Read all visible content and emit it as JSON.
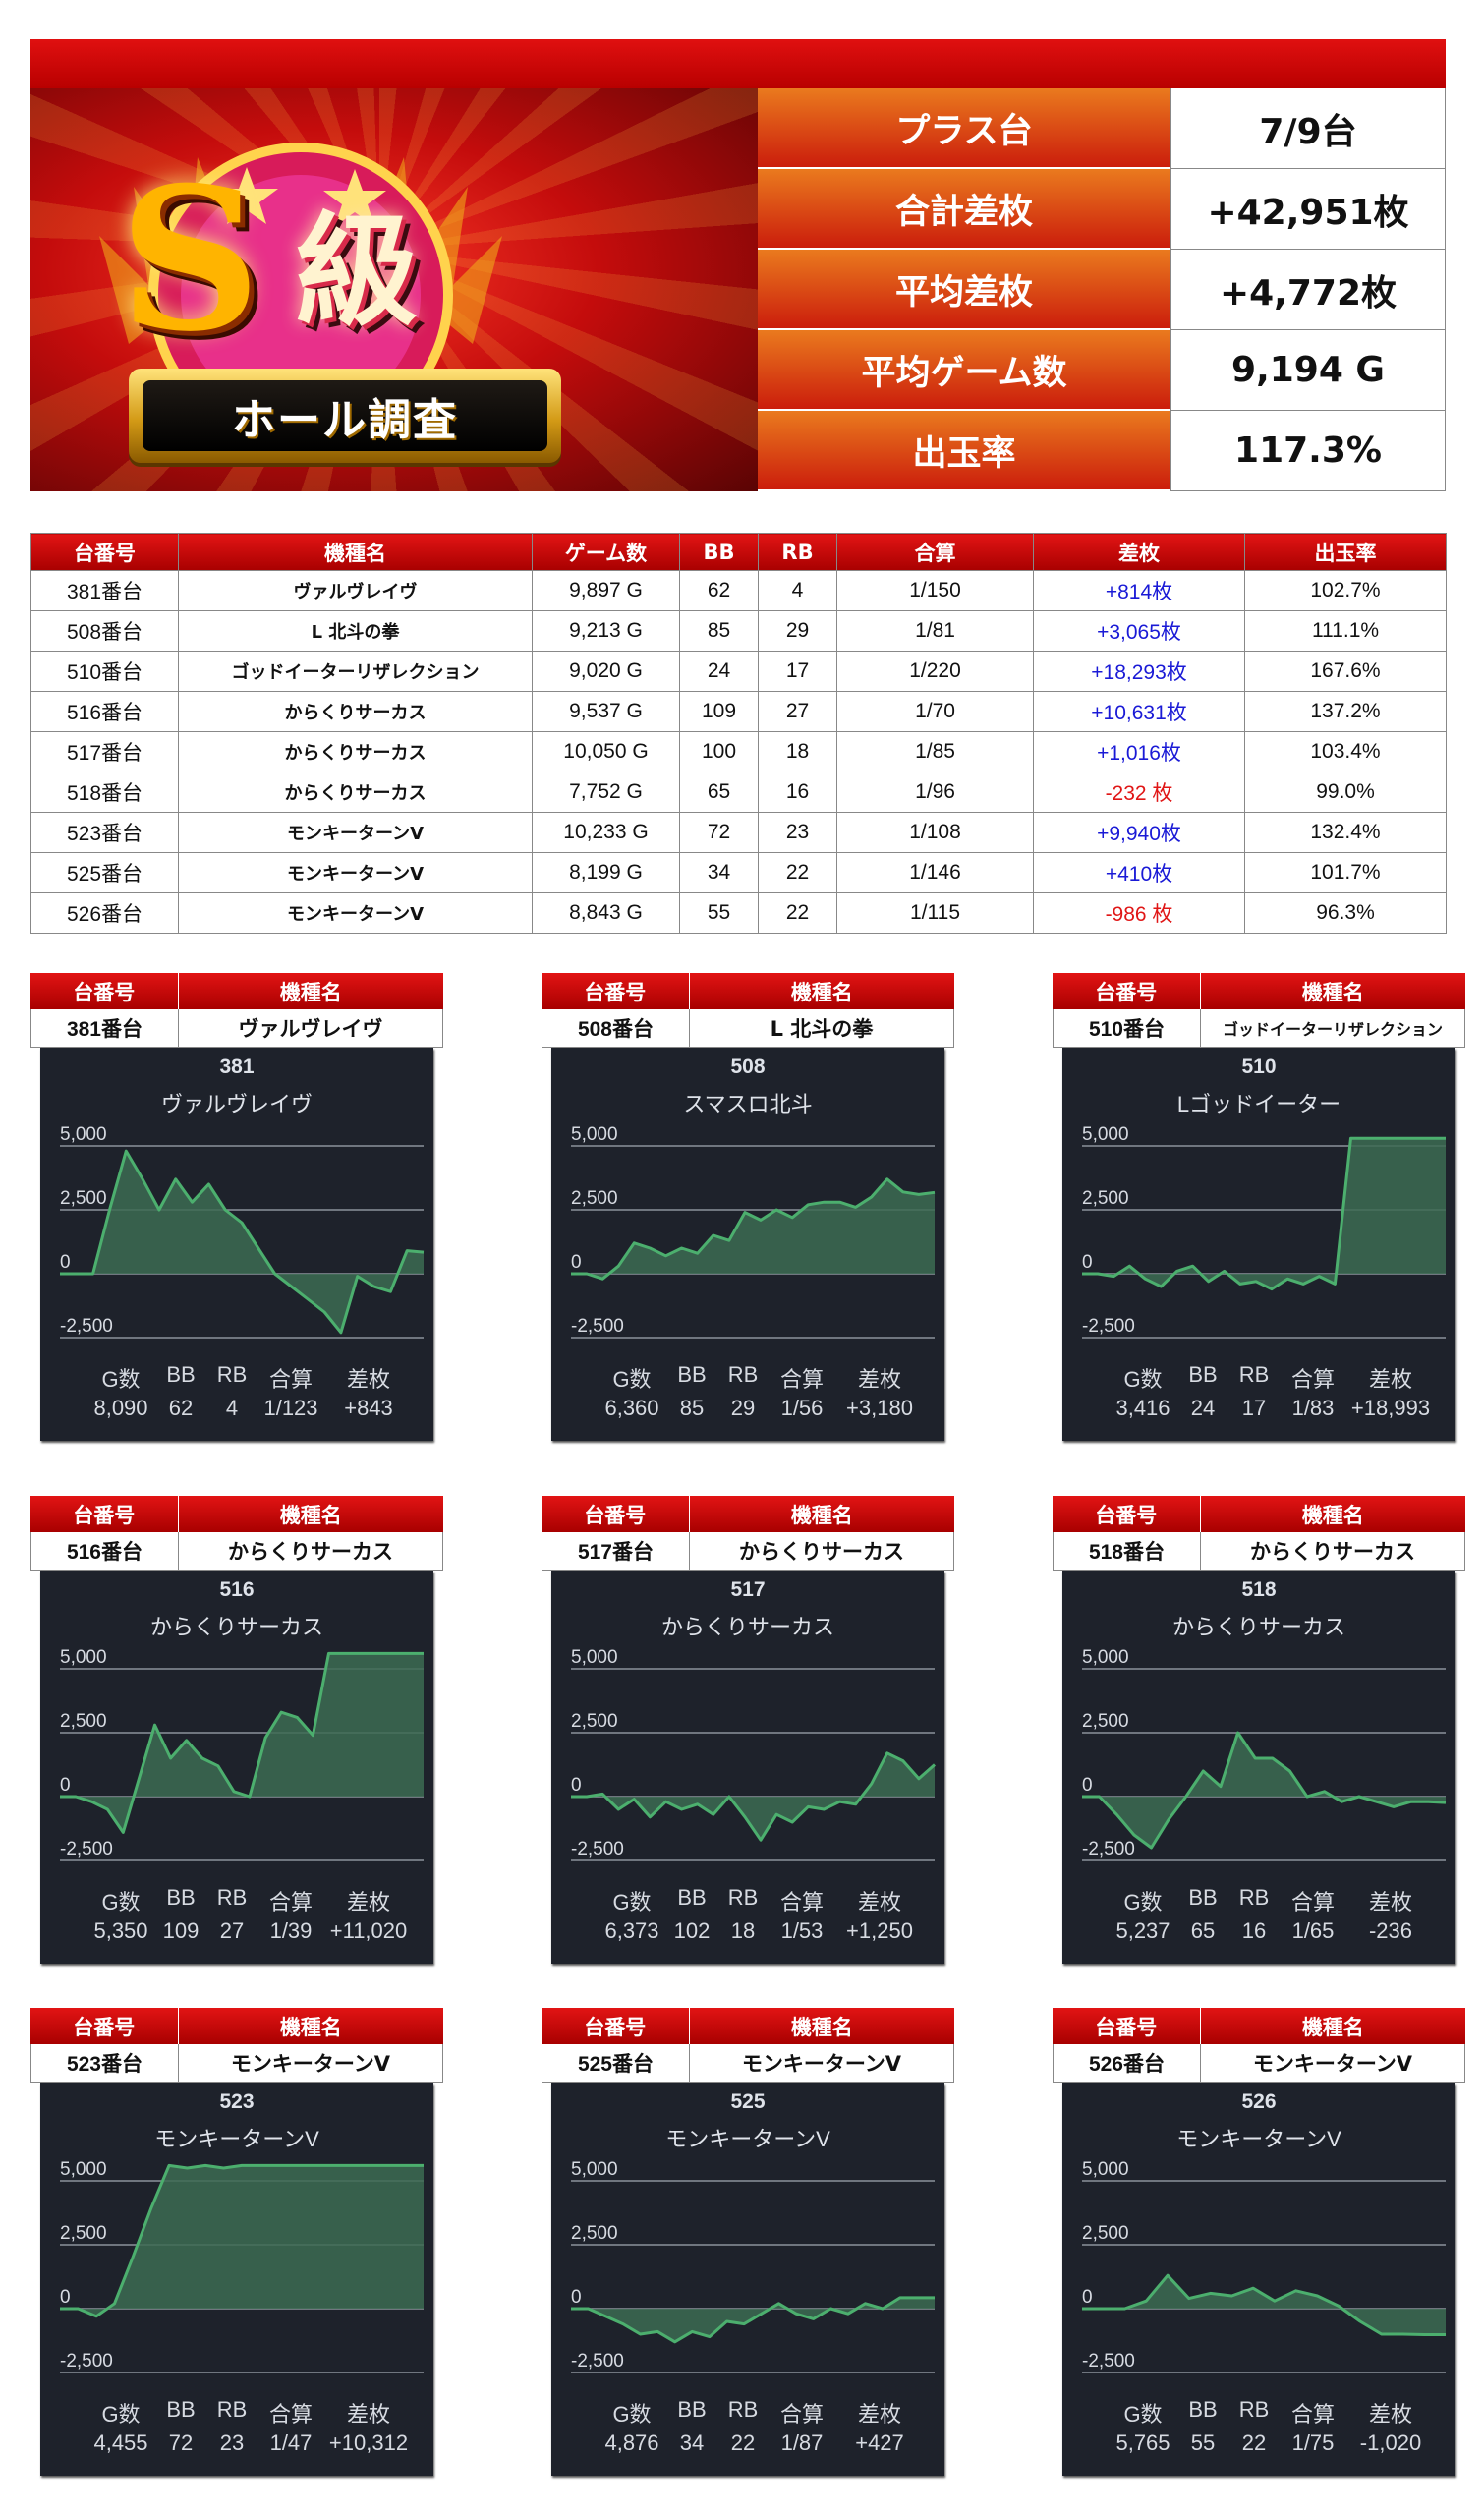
{
  "banner": {
    "title_main": "S",
    "title_rank": "級",
    "ribbon_text": "ホール調査"
  },
  "summary": [
    {
      "label": "プラス台",
      "value": "7/9台"
    },
    {
      "label": "合計差枚",
      "value": "+42,951枚"
    },
    {
      "label": "平均差枚",
      "value": "+4,772枚"
    },
    {
      "label": "平均ゲーム数",
      "value": "9,194 G"
    },
    {
      "label": "出玉率",
      "value": "117.3%"
    }
  ],
  "table": {
    "headers": [
      "台番号",
      "機種名",
      "ゲーム数",
      "BB",
      "RB",
      "合算",
      "差枚",
      "出玉率"
    ],
    "rows": [
      {
        "id": "381番台",
        "model": "ヴァルヴレイヴ",
        "games": "9,897 G",
        "bb": "62",
        "rb": "4",
        "combined": "1/150",
        "diff": "+814枚",
        "rate": "102.7%",
        "sign": "pos"
      },
      {
        "id": "508番台",
        "model": "L 北斗の拳",
        "games": "9,213 G",
        "bb": "85",
        "rb": "29",
        "combined": "1/81",
        "diff": "+3,065枚",
        "rate": "111.1%",
        "sign": "pos"
      },
      {
        "id": "510番台",
        "model": "ゴッドイーターリザレクション",
        "games": "9,020 G",
        "bb": "24",
        "rb": "17",
        "combined": "1/220",
        "diff": "+18,293枚",
        "rate": "167.6%",
        "sign": "pos"
      },
      {
        "id": "516番台",
        "model": "からくりサーカス",
        "games": "9,537 G",
        "bb": "109",
        "rb": "27",
        "combined": "1/70",
        "diff": "+10,631枚",
        "rate": "137.2%",
        "sign": "pos"
      },
      {
        "id": "517番台",
        "model": "からくりサーカス",
        "games": "10,050 G",
        "bb": "100",
        "rb": "18",
        "combined": "1/85",
        "diff": "+1,016枚",
        "rate": "103.4%",
        "sign": "pos"
      },
      {
        "id": "518番台",
        "model": "からくりサーカス",
        "games": "7,752 G",
        "bb": "65",
        "rb": "16",
        "combined": "1/96",
        "diff": "-232 枚",
        "rate": "99.0%",
        "sign": "neg"
      },
      {
        "id": "523番台",
        "model": "モンキーターンV",
        "games": "10,233 G",
        "bb": "72",
        "rb": "23",
        "combined": "1/108",
        "diff": "+9,940枚",
        "rate": "132.4%",
        "sign": "pos"
      },
      {
        "id": "525番台",
        "model": "モンキーターンV",
        "games": "8,199 G",
        "bb": "34",
        "rb": "22",
        "combined": "1/146",
        "diff": "+410枚",
        "rate": "101.7%",
        "sign": "pos"
      },
      {
        "id": "526番台",
        "model": "モンキーターンV",
        "games": "8,843 G",
        "bb": "55",
        "rb": "22",
        "combined": "1/115",
        "diff": "-986 枚",
        "rate": "96.3%",
        "sign": "neg"
      }
    ]
  },
  "panel_headers": {
    "id": "台番号",
    "model": "機種名"
  },
  "chart_colors": {
    "background": "#1e222b",
    "line": "#4caf6e",
    "fill": "#3c6b52",
    "grid": "#8c919b"
  },
  "chart_data": [
    {
      "type": "area",
      "id": "381番台",
      "model": "ヴァルヴレイヴ",
      "number": "381",
      "name": "ヴァルヴレイヴ",
      "y_ticks": [
        "5,000",
        "2,500",
        "0",
        "-2,500"
      ],
      "ylim": [
        -2800,
        5600
      ],
      "values": [
        0,
        0,
        0,
        2500,
        4800,
        3700,
        2500,
        3700,
        2800,
        3500,
        2500,
        2000,
        1000,
        0,
        -500,
        -1000,
        -1500,
        -2300,
        -100,
        -500,
        -700,
        900,
        843
      ],
      "stats_labels": [
        "G数",
        "BB",
        "RB",
        "合算",
        "差枚"
      ],
      "stats_values": [
        "8,090",
        "62",
        "4",
        "1/123",
        "+843"
      ]
    },
    {
      "type": "area",
      "id": "508番台",
      "model": "L 北斗の拳",
      "number": "508",
      "name": "スマスロ北斗",
      "y_ticks": [
        "5,000",
        "2,500",
        "0",
        "-2,500"
      ],
      "ylim": [
        -2800,
        5600
      ],
      "values": [
        0,
        0,
        -200,
        300,
        1200,
        1000,
        700,
        1000,
        800,
        1500,
        1300,
        2400,
        2100,
        2500,
        2200,
        2700,
        2800,
        2800,
        2600,
        3000,
        3700,
        3200,
        3100,
        3180
      ],
      "stats_labels": [
        "G数",
        "BB",
        "RB",
        "合算",
        "差枚"
      ],
      "stats_values": [
        "6,360",
        "85",
        "29",
        "1/56",
        "+3,180"
      ]
    },
    {
      "type": "area",
      "id": "510番台",
      "model": "ゴッドイーターリザレクション",
      "number": "510",
      "name": "Lゴッドイーター",
      "y_ticks": [
        "5,000",
        "2,500",
        "0",
        "-2,500"
      ],
      "ylim": [
        -2800,
        5600
      ],
      "values": [
        0,
        0,
        -100,
        300,
        -200,
        -500,
        100,
        300,
        -300,
        100,
        -400,
        -300,
        -600,
        -200,
        -400,
        -100,
        -400,
        5300,
        5300,
        5300,
        5300,
        5300,
        5300,
        5300
      ],
      "stats_labels": [
        "G数",
        "BB",
        "RB",
        "合算",
        "差枚"
      ],
      "stats_values": [
        "3,416",
        "24",
        "17",
        "1/83",
        "+18,993"
      ]
    },
    {
      "type": "area",
      "id": "516番台",
      "model": "からくりサーカス",
      "number": "516",
      "name": "からくりサーカス",
      "y_ticks": [
        "5,000",
        "2,500",
        "0",
        "-2,500"
      ],
      "ylim": [
        -2800,
        5600
      ],
      "values": [
        0,
        0,
        -200,
        -500,
        -1400,
        700,
        2800,
        1500,
        2200,
        1500,
        1200,
        200,
        0,
        2300,
        3300,
        3100,
        2400,
        6000,
        6000,
        6000,
        6000,
        6000,
        6000,
        6000
      ],
      "stats_labels": [
        "G数",
        "BB",
        "RB",
        "合算",
        "差枚"
      ],
      "stats_values": [
        "5,350",
        "109",
        "27",
        "1/39",
        "+11,020"
      ]
    },
    {
      "type": "area",
      "id": "517番台",
      "model": "からくりサーカス",
      "number": "517",
      "name": "からくりサーカス",
      "y_ticks": [
        "5,000",
        "2,500",
        "0",
        "-2,500"
      ],
      "ylim": [
        -2800,
        5600
      ],
      "values": [
        0,
        0,
        100,
        -500,
        -100,
        -800,
        -200,
        -500,
        -300,
        -700,
        0,
        -800,
        -1700,
        -700,
        -1000,
        -400,
        -500,
        -200,
        -300,
        500,
        1700,
        1400,
        700,
        1250
      ],
      "stats_labels": [
        "G数",
        "BB",
        "RB",
        "合算",
        "差枚"
      ],
      "stats_values": [
        "6,373",
        "102",
        "18",
        "1/53",
        "+1,250"
      ]
    },
    {
      "type": "area",
      "id": "518番台",
      "model": "からくりサーカス",
      "number": "518",
      "name": "からくりサーカス",
      "y_ticks": [
        "5,000",
        "2,500",
        "0",
        "-2,500"
      ],
      "ylim": [
        -2800,
        5600
      ],
      "values": [
        0,
        0,
        -700,
        -1500,
        -2000,
        -900,
        0,
        1000,
        400,
        2500,
        1500,
        1500,
        1000,
        0,
        200,
        -200,
        0,
        -200,
        -400,
        -200,
        -200,
        -236
      ],
      "stats_labels": [
        "G数",
        "BB",
        "RB",
        "合算",
        "差枚"
      ],
      "stats_values": [
        "5,237",
        "65",
        "16",
        "1/65",
        "-236"
      ]
    },
    {
      "type": "area",
      "id": "523番台",
      "model": "モンキーターンV",
      "number": "523",
      "name": "モンキーターンV",
      "y_ticks": [
        "5,000",
        "2,500",
        "0",
        "-2,500"
      ],
      "ylim": [
        -2800,
        5600
      ],
      "values": [
        0,
        0,
        -300,
        200,
        2000,
        3900,
        6000,
        5500,
        6000,
        5500,
        6000,
        6000,
        6000,
        6000,
        6000,
        6000,
        6000,
        6000,
        6000,
        6000,
        6000
      ],
      "stats_labels": [
        "G数",
        "BB",
        "RB",
        "合算",
        "差枚"
      ],
      "stats_values": [
        "4,455",
        "72",
        "23",
        "1/47",
        "+10,312"
      ]
    },
    {
      "type": "area",
      "id": "525番台",
      "model": "モンキーターンV",
      "number": "525",
      "name": "モンキーターンV",
      "y_ticks": [
        "5,000",
        "2,500",
        "0",
        "-2,500"
      ],
      "ylim": [
        -2800,
        5600
      ],
      "values": [
        0,
        0,
        -300,
        -600,
        -1000,
        -900,
        -1300,
        -900,
        -1100,
        -500,
        -600,
        -200,
        200,
        -200,
        -400,
        0,
        -200,
        200,
        0,
        427,
        427,
        427
      ],
      "stats_labels": [
        "G数",
        "BB",
        "RB",
        "合算",
        "差枚"
      ],
      "stats_values": [
        "4,876",
        "34",
        "22",
        "1/87",
        "+427"
      ]
    },
    {
      "type": "area",
      "id": "526番台",
      "model": "モンキーターンV",
      "number": "526",
      "name": "モンキーターンV",
      "y_ticks": [
        "5,000",
        "2,500",
        "0",
        "-2,500"
      ],
      "ylim": [
        -2800,
        5600
      ],
      "values": [
        0,
        0,
        0,
        300,
        1300,
        400,
        600,
        500,
        800,
        300,
        700,
        500,
        100,
        -500,
        -1000,
        -1000,
        -1020,
        -1020
      ],
      "stats_labels": [
        "G数",
        "BB",
        "RB",
        "合算",
        "差枚"
      ],
      "stats_values": [
        "5,765",
        "55",
        "22",
        "1/75",
        "-1,020"
      ]
    }
  ]
}
